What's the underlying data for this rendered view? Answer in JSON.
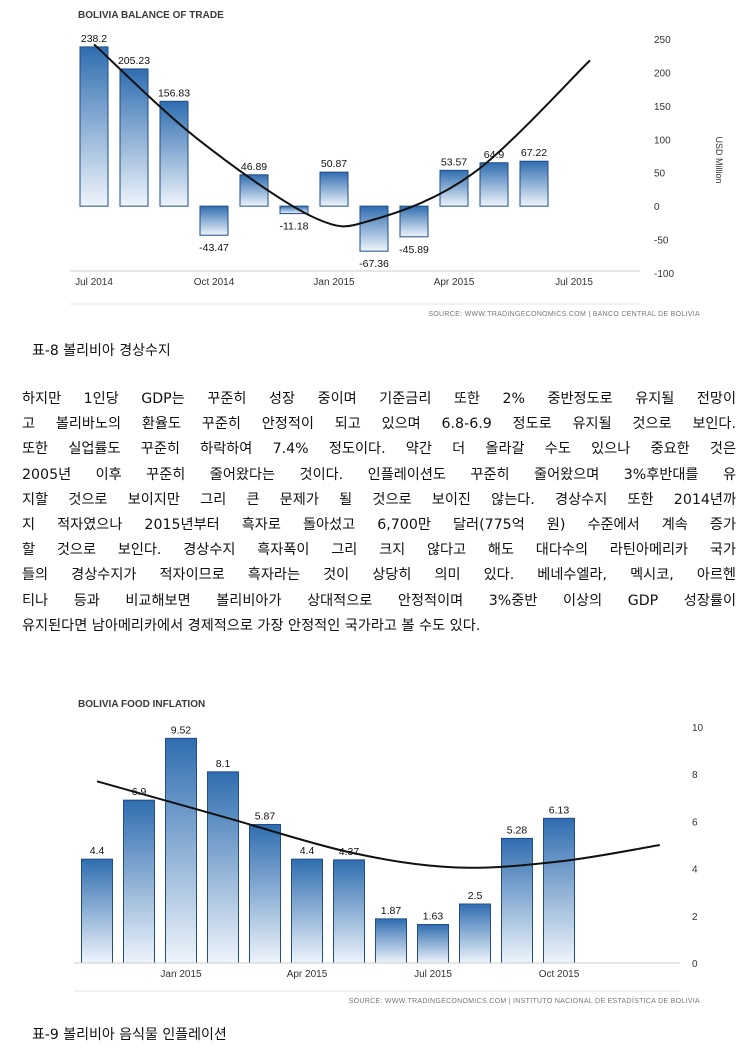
{
  "charts": {
    "trade": {
      "title": "BOLIVIA BALANCE OF TRADE",
      "y_axis_label": "USD Million",
      "source": "SOURCE: WWW.TRADINGECONOMICS.COM | BANCO CENTRAL DE BOLIVIA"
    },
    "food": {
      "title": "BOLIVIA FOOD INFLATION",
      "source": "SOURCE: WWW.TRADINGECONOMICS.COM | INSTITUTO NACIONAL DE ESTADÍSTICA DE BOLIVIA"
    }
  },
  "chart_data": [
    {
      "type": "bar",
      "title": "BOLIVIA BALANCE OF TRADE",
      "ylabel": "USD Million",
      "xlabel": "",
      "ylim": [
        -100,
        250
      ],
      "yticks": [
        250,
        200,
        150,
        100,
        50,
        0,
        -50,
        -100
      ],
      "x_tick_labels": [
        "Jul 2014",
        "Oct 2014",
        "Jan 2015",
        "Apr 2015",
        "Jul 2015"
      ],
      "categories": [
        "Jul 2014",
        "Aug 2014",
        "Sep 2014",
        "Oct 2014",
        "Nov 2014",
        "Dec 2014",
        "Jan 2015",
        "Feb 2015",
        "Mar 2015",
        "Apr 2015",
        "May 2015",
        "Jun 2015"
      ],
      "values": [
        238.2,
        205.23,
        156.83,
        -43.47,
        46.89,
        -11.18,
        50.87,
        -67.36,
        -45.89,
        53.57,
        64.9,
        67.22
      ],
      "labels": [
        "238.2",
        "205.23",
        "156.83",
        "-43.47",
        "46.89",
        "-11.18",
        "50.87",
        "-67.36",
        "-45.89",
        "53.57",
        "64.9",
        "67.22"
      ],
      "trend": {
        "x": [
          0,
          2.6,
          5.5,
          7,
          9.5,
          12.4
        ],
        "y": [
          242,
          100,
          -17,
          -20,
          50,
          218
        ]
      },
      "grid": false,
      "legend": "none"
    },
    {
      "type": "bar",
      "title": "BOLIVIA FOOD INFLATION",
      "xlabel": "",
      "ylabel": "",
      "ylim": [
        0,
        10
      ],
      "yticks": [
        10,
        8,
        6,
        4,
        2,
        0
      ],
      "x_tick_labels": [
        "Jan 2015",
        "Apr 2015",
        "Jul 2015",
        "Oct 2015"
      ],
      "categories": [
        "Nov 2014",
        "Dec 2014",
        "Jan 2015",
        "Feb 2015",
        "Mar 2015",
        "Apr 2015",
        "May 2015",
        "Jun 2015",
        "Jul 2015",
        "Aug 2015",
        "Sep 2015",
        "Oct 2015"
      ],
      "values": [
        4.4,
        6.9,
        9.52,
        8.1,
        5.87,
        4.4,
        4.37,
        1.87,
        1.63,
        2.5,
        5.28,
        6.13
      ],
      "labels": [
        "4.4",
        "6.9",
        "9.52",
        "8.1",
        "5.87",
        "4.4",
        "4.37",
        "1.87",
        "1.63",
        "2.5",
        "5.28",
        "6.13"
      ],
      "trend": {
        "x": [
          0,
          3,
          6,
          8.5,
          11,
          13.4
        ],
        "y": [
          7.7,
          6.2,
          4.7,
          4.05,
          4.3,
          5
        ]
      },
      "grid": false,
      "legend": "none"
    }
  ],
  "caption1": "표-8 볼리비아 경상수지",
  "caption2": "표-9 볼리비아 음식물 인플레이션",
  "paragraph": [
    "하지만 1인당 GDP는 꾸준히 성장 중이며 기준금리 또한 2% 중반정도로 유지될 전망이",
    "고 볼리바노의 환율도 꾸준히 안정적이 되고 있으며 6.8-6.9 정도로 유지될 것으로 보인다.",
    "또한 실업률도 꾸준히 하락하여 7.4% 정도이다. 약간 더 올라갈 수도 있으나 중요한 것은",
    "2005년 이후 꾸준히 줄어왔다는 것이다. 인플레이션도 꾸준히 줄어왔으며 3%후반대를 유",
    "지할 것으로 보이지만 그리 큰 문제가 될 것으로 보이진 않는다. 경상수지 또한 2014년까",
    "지 적자였으나 2015년부터 흑자로 돌아섰고 6,700만 달러(775억 원) 수준에서 계속 증가",
    "할 것으로 보인다. 경상수지 흑자폭이 그리 크지 않다고 해도 대다수의 라틴아메리카 국가",
    "들의 경상수지가 적자이므로 흑자라는 것이 상당히 의미 있다. 베네수엘라, 멕시코, 아르헨",
    "티나 등과 비교해보면 볼리비아가 상대적으로 안정적이며 3%중반 이상의 GDP 성장률이",
    "유지된다면 남아메리카에서 경제적으로 가장 안정적인 국가라고 볼 수도 있다."
  ]
}
